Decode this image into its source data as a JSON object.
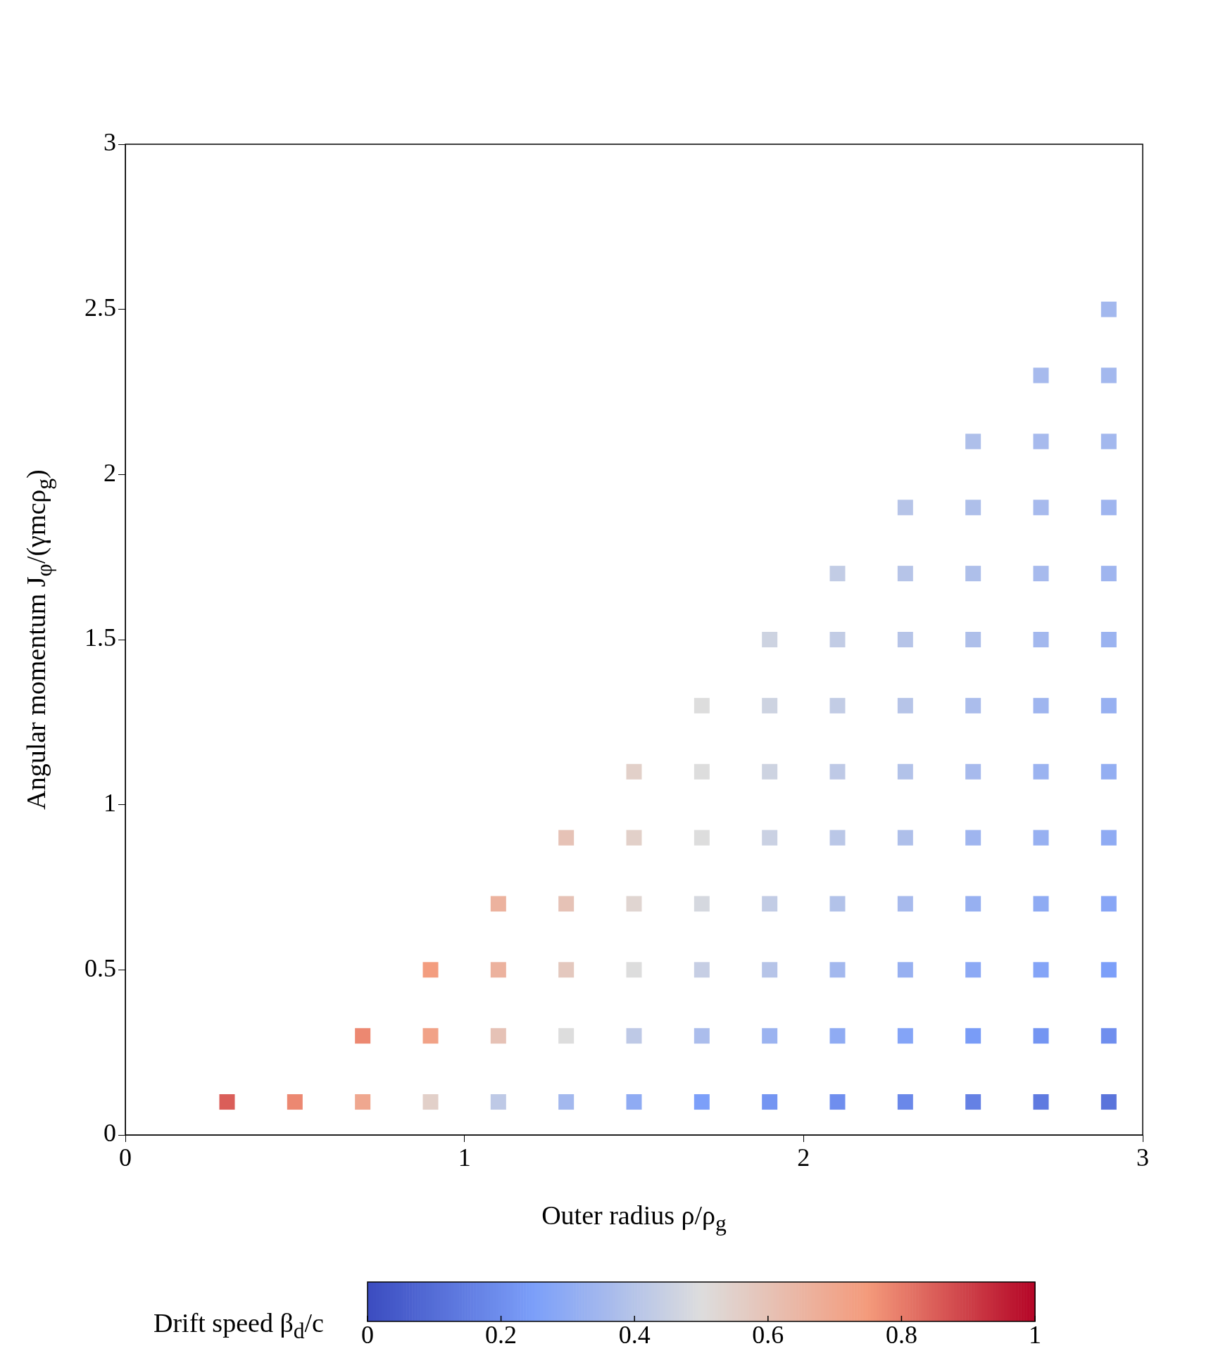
{
  "chart_data": {
    "type": "scatter",
    "xlabel": "Outer radius ρ/ρ$_{g}$",
    "ylabel": "Angular momentum J$_{φ}$/(γmcρ$_{g}$)",
    "clabel": "Drift speed β$_{d}$/c",
    "xlim": [
      0,
      3
    ],
    "xticks": [
      0,
      1,
      2,
      3
    ],
    "ylim": [
      0,
      3
    ],
    "yticks": [
      0,
      0.5,
      1,
      1.5,
      2,
      2.5,
      3
    ],
    "clim": [
      0,
      1
    ],
    "cticks": [
      0,
      0.2,
      0.4,
      0.6,
      0.8,
      1
    ],
    "marker": "square",
    "series": [
      {
        "x": [
          0.3,
          0.5,
          0.7,
          0.7,
          0.9,
          0.9,
          0.9,
          1.1,
          1.1,
          1.1,
          1.1,
          1.3,
          1.3,
          1.3,
          1.3,
          1.3,
          1.5,
          1.5,
          1.5,
          1.5,
          1.5,
          1.5,
          1.7,
          1.7,
          1.7,
          1.7,
          1.7,
          1.7,
          1.7,
          1.9,
          1.9,
          1.9,
          1.9,
          1.9,
          1.9,
          1.9,
          1.9,
          2.1,
          2.1,
          2.1,
          2.1,
          2.1,
          2.1,
          2.1,
          2.1,
          2.1,
          2.3,
          2.3,
          2.3,
          2.3,
          2.3,
          2.3,
          2.3,
          2.3,
          2.3,
          2.3,
          2.5,
          2.5,
          2.5,
          2.5,
          2.5,
          2.5,
          2.5,
          2.5,
          2.5,
          2.5,
          2.5,
          2.7,
          2.7,
          2.7,
          2.7,
          2.7,
          2.7,
          2.7,
          2.7,
          2.7,
          2.7,
          2.7,
          2.7,
          2.9,
          2.9,
          2.9,
          2.9,
          2.9,
          2.9,
          2.9,
          2.9,
          2.9,
          2.9,
          2.9,
          2.9,
          2.9
        ],
        "values": [
          0.1,
          0.1,
          0.1,
          0.3,
          0.1,
          0.3,
          0.5,
          0.1,
          0.3,
          0.5,
          0.7,
          0.1,
          0.3,
          0.5,
          0.7,
          0.9,
          0.1,
          0.3,
          0.5,
          0.7,
          0.9,
          1.1,
          0.1,
          0.3,
          0.5,
          0.7,
          0.9,
          1.1,
          1.3,
          0.1,
          0.3,
          0.5,
          0.7,
          0.9,
          1.1,
          1.3,
          1.5,
          0.1,
          0.3,
          0.5,
          0.7,
          0.9,
          1.1,
          1.3,
          1.5,
          1.7,
          0.1,
          0.3,
          0.5,
          0.7,
          0.9,
          1.1,
          1.3,
          1.5,
          1.7,
          1.9,
          0.1,
          0.3,
          0.5,
          0.7,
          0.9,
          1.1,
          1.3,
          1.5,
          1.7,
          1.9,
          2.1,
          0.1,
          0.3,
          0.5,
          0.7,
          0.9,
          1.1,
          1.3,
          1.5,
          1.7,
          1.9,
          2.1,
          2.3,
          0.1,
          0.3,
          0.5,
          0.7,
          0.9,
          1.1,
          1.3,
          1.5,
          1.7,
          1.9,
          2.1,
          2.3,
          2.5
        ],
        "cvalues": [
          0.85,
          0.78,
          0.7,
          0.78,
          0.55,
          0.72,
          0.74,
          0.42,
          0.6,
          0.66,
          0.66,
          0.35,
          0.5,
          0.58,
          0.6,
          0.6,
          0.3,
          0.42,
          0.5,
          0.53,
          0.55,
          0.55,
          0.25,
          0.37,
          0.44,
          0.48,
          0.5,
          0.5,
          0.5,
          0.22,
          0.33,
          0.4,
          0.43,
          0.45,
          0.46,
          0.46,
          0.46,
          0.2,
          0.3,
          0.35,
          0.39,
          0.41,
          0.42,
          0.43,
          0.43,
          0.43,
          0.18,
          0.27,
          0.32,
          0.36,
          0.38,
          0.39,
          0.4,
          0.4,
          0.4,
          0.4,
          0.16,
          0.24,
          0.29,
          0.32,
          0.34,
          0.36,
          0.37,
          0.38,
          0.38,
          0.38,
          0.38,
          0.14,
          0.22,
          0.27,
          0.3,
          0.32,
          0.33,
          0.34,
          0.35,
          0.36,
          0.36,
          0.36,
          0.36,
          0.12,
          0.2,
          0.25,
          0.28,
          0.3,
          0.31,
          0.32,
          0.33,
          0.34,
          0.34,
          0.35,
          0.35,
          0.35
        ]
      }
    ]
  }
}
